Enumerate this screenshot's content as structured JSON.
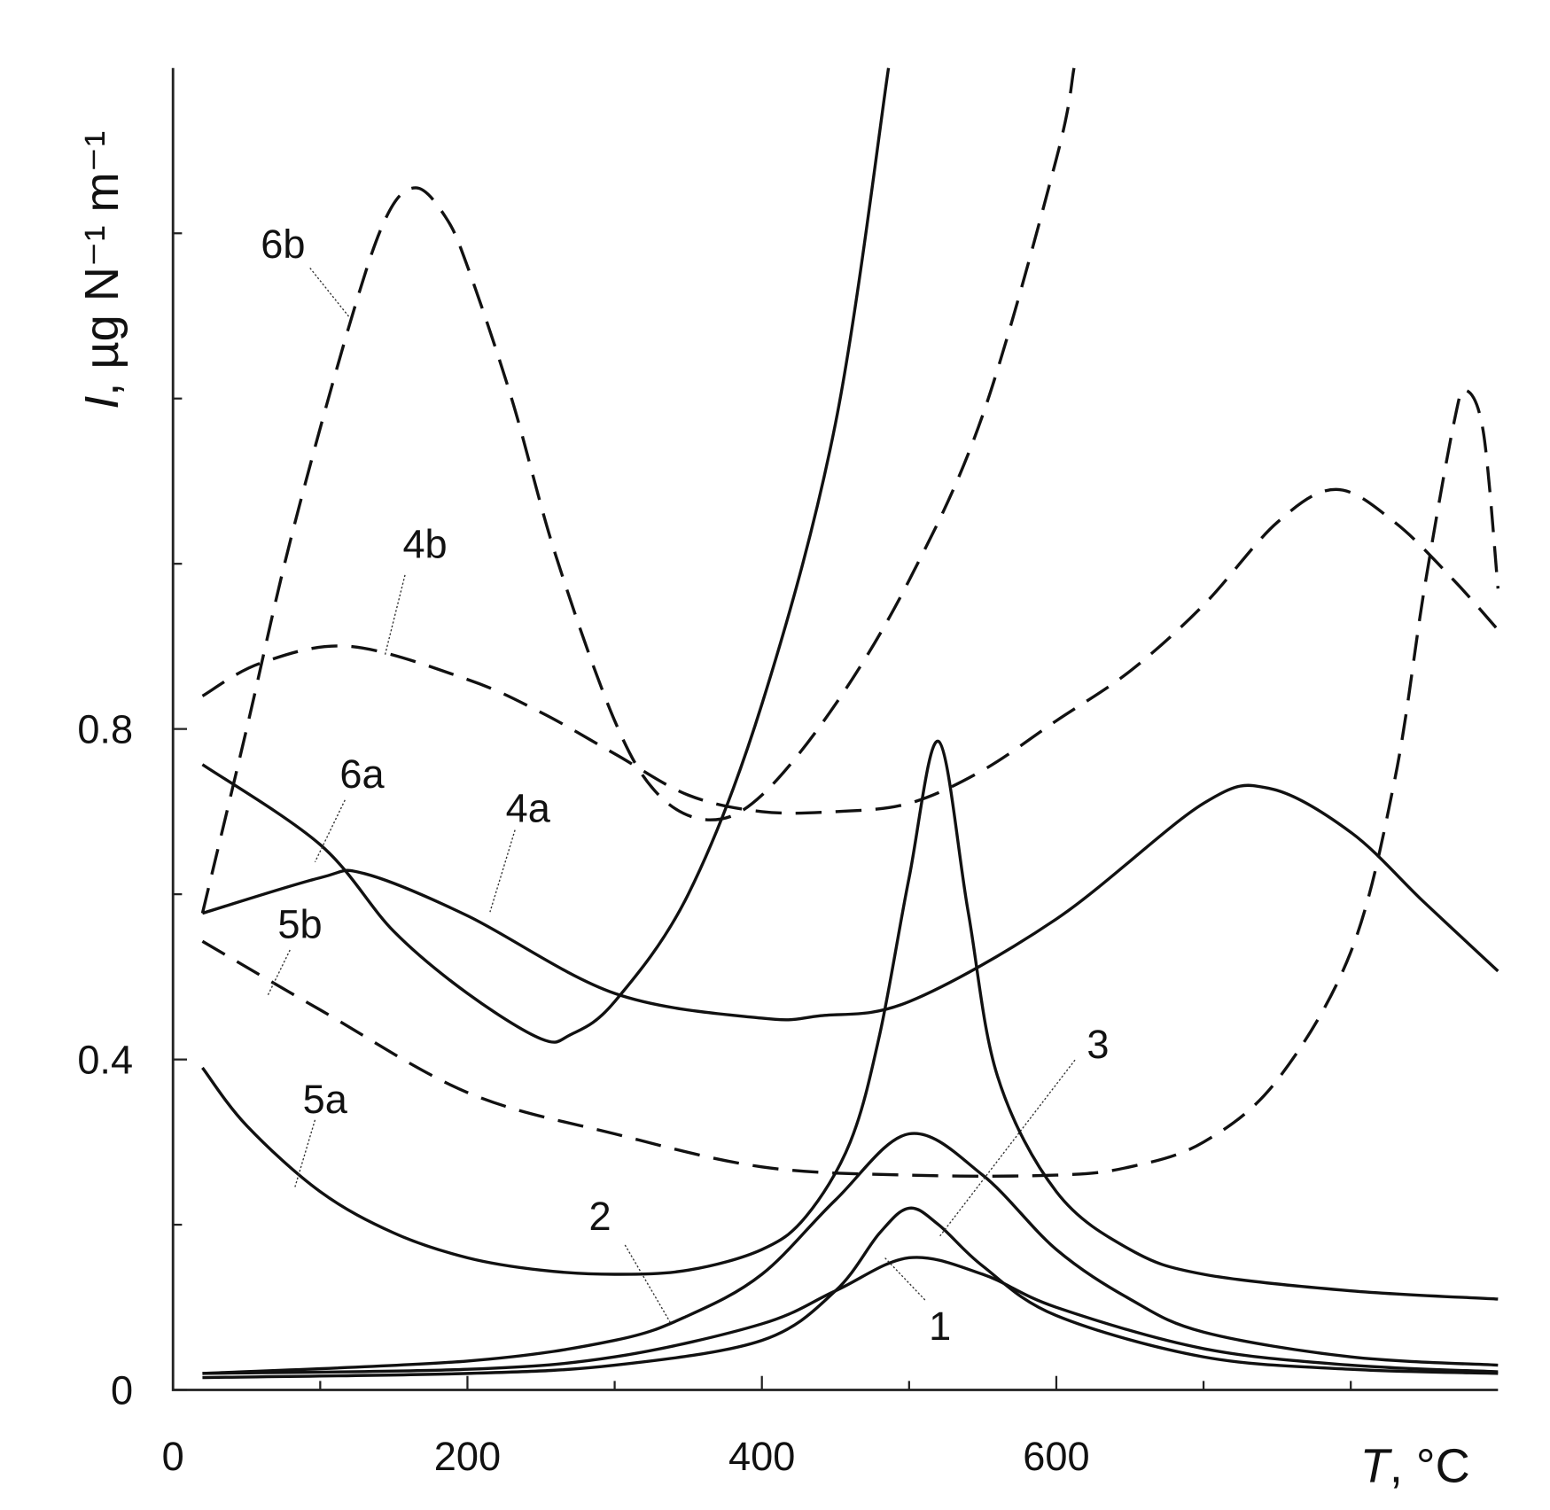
{
  "chart_data": {
    "type": "line",
    "x_label_symbol": "T",
    "x_label_unit": ", °C",
    "y_label_symbol": "I",
    "y_label_unit": ", µg N⁻¹ m⁻¹",
    "xlim": [
      0,
      900
    ],
    "ylim": [
      0,
      1.6
    ],
    "xticks": [
      0,
      200,
      400,
      600
    ],
    "xticks_minor": [
      100,
      300,
      500,
      700,
      800
    ],
    "yticks": [
      0,
      0.4,
      0.8
    ],
    "yticks_minor": [
      0.2,
      0.6,
      1.0,
      1.2,
      1.4
    ],
    "series": [
      {
        "name": "1",
        "color": "#111",
        "dash": false,
        "x": [
          20,
          200,
          300,
          400,
          450,
          500,
          550,
          600,
          700,
          800,
          900
        ],
        "values": [
          0.02,
          0.025,
          0.04,
          0.08,
          0.12,
          0.16,
          0.14,
          0.1,
          0.05,
          0.03,
          0.022
        ]
      },
      {
        "name": "2",
        "color": "#111",
        "dash": false,
        "x": [
          20,
          200,
          300,
          350,
          400,
          450,
          500,
          550,
          600,
          650,
          700,
          800,
          900
        ],
        "values": [
          0.02,
          0.035,
          0.06,
          0.09,
          0.14,
          0.23,
          0.31,
          0.26,
          0.17,
          0.11,
          0.07,
          0.04,
          0.03
        ]
      },
      {
        "name": "3",
        "color": "#111",
        "dash": false,
        "x": [
          20,
          200,
          300,
          400,
          450,
          480,
          500,
          520,
          550,
          600,
          700,
          800,
          900
        ],
        "values": [
          0.015,
          0.02,
          0.03,
          0.06,
          0.12,
          0.19,
          0.22,
          0.2,
          0.15,
          0.09,
          0.04,
          0.025,
          0.02
        ]
      },
      {
        "name": "4a",
        "color": "#111",
        "dash": false,
        "x": [
          20,
          100,
          130,
          200,
          300,
          400,
          440,
          500,
          600,
          700,
          745,
          800,
          850,
          900
        ],
        "values": [
          0.577,
          0.62,
          0.625,
          0.574,
          0.48,
          0.45,
          0.453,
          0.47,
          0.57,
          0.71,
          0.728,
          0.675,
          0.59,
          0.507
        ]
      },
      {
        "name": "4b",
        "color": "#111",
        "dash": true,
        "x": [
          20,
          60,
          120,
          200,
          250,
          300,
          350,
          400,
          450,
          500,
          550,
          600,
          650,
          700,
          750,
          790,
          830,
          870,
          900
        ],
        "values": [
          0.84,
          0.88,
          0.9,
          0.86,
          0.82,
          0.77,
          0.72,
          0.7,
          0.7,
          0.71,
          0.75,
          0.81,
          0.87,
          0.95,
          1.05,
          1.09,
          1.05,
          0.98,
          0.92
        ]
      },
      {
        "name": "5a",
        "color": "#111",
        "dash": false,
        "x": [
          20,
          50,
          100,
          150,
          200,
          250,
          300,
          350,
          400,
          430,
          460,
          480,
          500,
          520,
          540,
          560,
          600,
          650,
          700,
          800,
          900
        ],
        "values": [
          0.39,
          0.32,
          0.24,
          0.19,
          0.16,
          0.145,
          0.14,
          0.145,
          0.17,
          0.21,
          0.3,
          0.43,
          0.62,
          0.785,
          0.58,
          0.38,
          0.24,
          0.17,
          0.14,
          0.12,
          0.11
        ]
      },
      {
        "name": "5b",
        "color": "#111",
        "dash": true,
        "x": [
          20,
          100,
          200,
          300,
          400,
          500,
          600,
          650,
          700,
          750,
          800,
          830,
          850,
          870,
          878,
          890,
          900
        ],
        "values": [
          0.543,
          0.46,
          0.36,
          0.31,
          0.27,
          0.26,
          0.26,
          0.27,
          0.3,
          0.375,
          0.53,
          0.74,
          0.97,
          1.17,
          1.21,
          1.16,
          0.97
        ]
      },
      {
        "name": "6a",
        "color": "#111",
        "dash": false,
        "x": [
          20,
          100,
          150,
          200,
          250,
          270,
          300,
          350,
          400,
          450,
          486
        ],
        "values": [
          0.757,
          0.66,
          0.555,
          0.48,
          0.425,
          0.43,
          0.47,
          0.6,
          0.83,
          1.17,
          1.6
        ]
      },
      {
        "name": "6b",
        "color": "#111",
        "dash": true,
        "x": [
          20,
          50,
          80,
          120,
          145,
          165,
          185,
          200,
          230,
          260,
          300,
          330,
          365,
          400,
          450,
          500,
          550,
          600,
          612
        ],
        "values": [
          0.577,
          0.8,
          1.03,
          1.29,
          1.42,
          1.455,
          1.42,
          1.36,
          1.2,
          1.01,
          0.81,
          0.72,
          0.69,
          0.72,
          0.83,
          0.98,
          1.18,
          1.49,
          1.6
        ]
      }
    ]
  }
}
